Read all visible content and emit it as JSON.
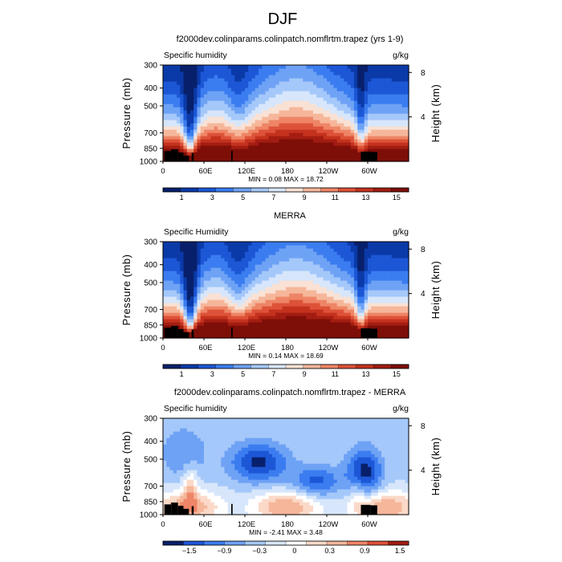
{
  "figure": {
    "season_title": "DJF"
  },
  "colors": {
    "abs_scale": [
      "#08206b",
      "#0b3aa8",
      "#1c57d6",
      "#3b7df0",
      "#6ea2f5",
      "#a5c8fa",
      "#d7e6fb",
      "#f9e1d4",
      "#f6b69a",
      "#ee8566",
      "#dd5238",
      "#c4321e",
      "#a31d12",
      "#7e0e08"
    ],
    "diff_scale": [
      "#08206b",
      "#1c57d6",
      "#3b7df0",
      "#6ea2f5",
      "#a5c8fa",
      "#d7e6fb",
      "#ffffff",
      "#fbd9c8",
      "#f6b69a",
      "#ee8566",
      "#dd5238",
      "#a31d12"
    ],
    "terrain": "#000000"
  },
  "chart_data": [
    {
      "type": "heatmap",
      "panel_title": "f2000dev.colinparams.colinpatch.nomflrtm.trapez (yrs 1-9)",
      "left_label": "Specific humidity",
      "right_label": "g/kg",
      "ylabel": "Pressure (mb)",
      "y2label": "Height (km)",
      "x_ticks": [
        "0",
        "60E",
        "120E",
        "180",
        "120W",
        "60W"
      ],
      "x_tick_values": [
        0,
        60,
        120,
        180,
        240,
        300
      ],
      "xlim": [
        0,
        360
      ],
      "y_ticks": [
        "300",
        "400",
        "500",
        "700",
        "850",
        "1000"
      ],
      "y_tick_values": [
        300,
        400,
        500,
        700,
        850,
        1000
      ],
      "ylim": [
        300,
        1000
      ],
      "y2_ticks": [
        "8",
        "4"
      ],
      "y2_tick_values": [
        8,
        4
      ],
      "stats_text": "MIN =    0.08   MAX =   18.72",
      "min": 0.08,
      "max": 18.72,
      "colorbar_labels": [
        "1",
        "3",
        "5",
        "7",
        "9",
        "11",
        "13",
        "15"
      ],
      "colorbar_levels": [
        0,
        1,
        2,
        3,
        4,
        5,
        6,
        7,
        8,
        9,
        10,
        11,
        12,
        13,
        14,
        15,
        16
      ],
      "field": "abs",
      "variant": 0
    },
    {
      "type": "heatmap",
      "panel_title": "MERRA",
      "left_label": "Specific Humidity",
      "right_label": "g/kg",
      "ylabel": "Pressure (mb)",
      "y2label": "Height (km)",
      "x_ticks": [
        "0",
        "60E",
        "120E",
        "180",
        "120W",
        "60W"
      ],
      "x_tick_values": [
        0,
        60,
        120,
        180,
        240,
        300
      ],
      "xlim": [
        0,
        360
      ],
      "y_ticks": [
        "300",
        "400",
        "500",
        "700",
        "850",
        "1000"
      ],
      "y_tick_values": [
        300,
        400,
        500,
        700,
        850,
        1000
      ],
      "ylim": [
        300,
        1000
      ],
      "y2_ticks": [
        "8",
        "4"
      ],
      "y2_tick_values": [
        8,
        4
      ],
      "stats_text": "MIN =    0.14   MAX =   18.69",
      "min": 0.14,
      "max": 18.69,
      "colorbar_labels": [
        "1",
        "3",
        "5",
        "7",
        "9",
        "11",
        "13",
        "15"
      ],
      "colorbar_levels": [
        0,
        1,
        2,
        3,
        4,
        5,
        6,
        7,
        8,
        9,
        10,
        11,
        12,
        13,
        14,
        15,
        16
      ],
      "field": "abs",
      "variant": 1
    },
    {
      "type": "heatmap",
      "panel_title": "f2000dev.colinparams.colinpatch.nomflrtm.trapez - MERRA",
      "left_label": "Specific humidity",
      "right_label": "g/kg",
      "ylabel": "Pressure (mb)",
      "y2label": "Height (km)",
      "x_ticks": [
        "0",
        "60E",
        "120E",
        "180",
        "120W",
        "60W"
      ],
      "x_tick_values": [
        0,
        60,
        120,
        180,
        240,
        300
      ],
      "xlim": [
        0,
        360
      ],
      "y_ticks": [
        "300",
        "400",
        "500",
        "700",
        "850",
        "1000"
      ],
      "y_tick_values": [
        300,
        400,
        500,
        700,
        850,
        1000
      ],
      "ylim": [
        300,
        1000
      ],
      "y2_ticks": [
        "8",
        "4"
      ],
      "y2_tick_values": [
        8,
        4
      ],
      "stats_text": "MIN =   -2.41   MAX =    3.48",
      "min": -2.41,
      "max": 3.48,
      "colorbar_labels": [
        "−1.5",
        "−0.9",
        "−0.3",
        "0",
        "0.3",
        "0.9",
        "1.5"
      ],
      "colorbar_levels": [
        -2.1,
        -1.8,
        -1.5,
        -1.2,
        -0.9,
        -0.6,
        -0.3,
        0,
        0.3,
        0.6,
        0.9,
        1.2,
        1.5
      ],
      "field": "diff",
      "variant": 2
    }
  ]
}
